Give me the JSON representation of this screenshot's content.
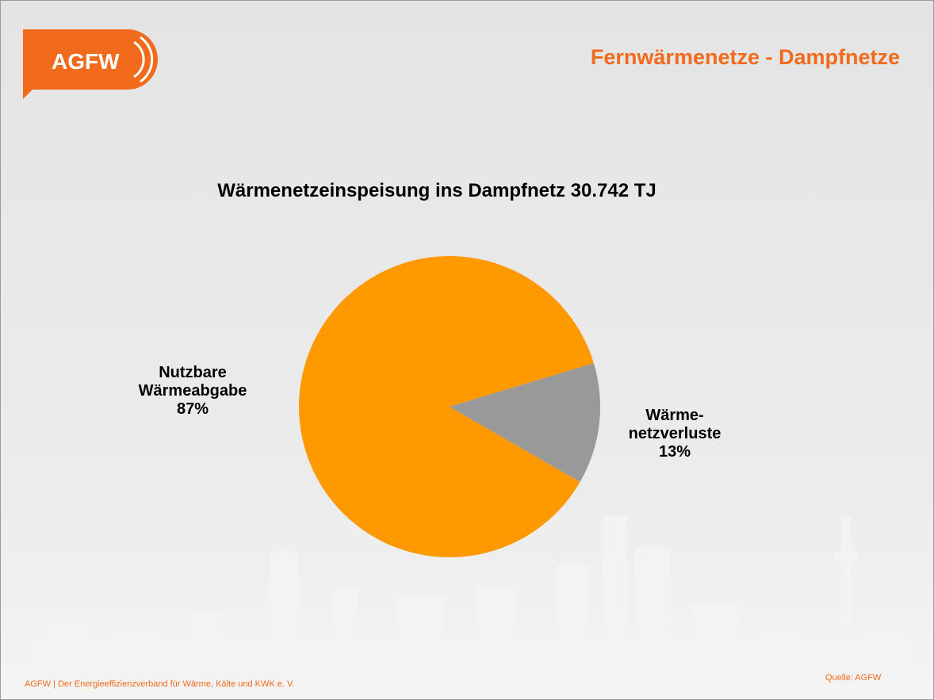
{
  "header": {
    "logo": "AGFW",
    "title": "Fernwärmenetze - Dampfnetze"
  },
  "chart_data": {
    "type": "pie",
    "title": "Wärmenetzeinspeisung ins Dampfnetz 30.742 TJ",
    "categories": [
      "Nutzbare Wärmeabgabe",
      "Wärme-netzverluste"
    ],
    "values": [
      87,
      13
    ],
    "value_labels": [
      "87%",
      "13%"
    ],
    "colors": [
      "#ff9900",
      "#999999"
    ]
  },
  "footer": {
    "text": "AGFW | Der Energieeffizienzverband für Wärme, Kälte und KWK e. V.",
    "source": "Quelle: AGFW"
  }
}
